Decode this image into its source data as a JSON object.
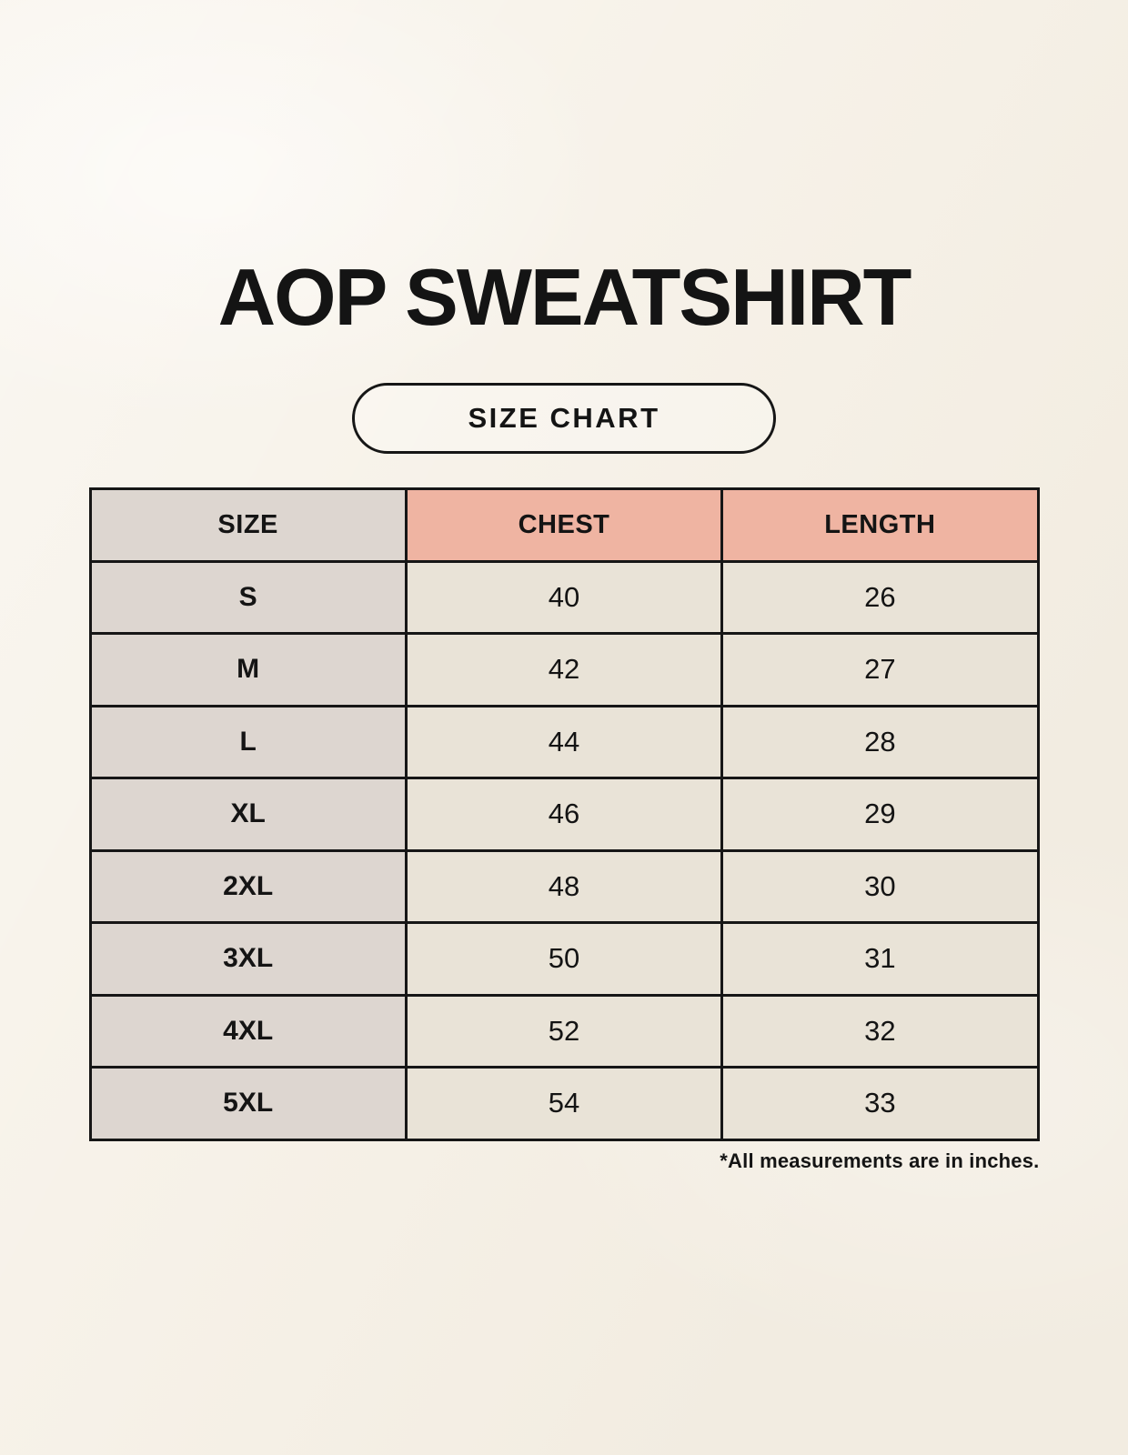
{
  "page": {
    "title": "AOP SWEATSHIRT",
    "badge_label": "SIZE CHART",
    "footnote": "*All measurements are in inches."
  },
  "colors": {
    "background": "#f7f2e9",
    "size_column": "#ddd6d0",
    "header_accent": "#efb4a2",
    "data_cell": "#e9e3d7",
    "border": "#161616",
    "text": "#141414"
  },
  "chart_data": {
    "type": "table",
    "title": "AOP SWEATSHIRT",
    "subtitle": "SIZE CHART",
    "columns": [
      "SIZE",
      "CHEST",
      "LENGTH"
    ],
    "rows": [
      [
        "S",
        40,
        26
      ],
      [
        "M",
        42,
        27
      ],
      [
        "L",
        44,
        28
      ],
      [
        "XL",
        46,
        29
      ],
      [
        "2XL",
        48,
        30
      ],
      [
        "3XL",
        50,
        31
      ],
      [
        "4XL",
        52,
        32
      ],
      [
        "5XL",
        54,
        33
      ]
    ],
    "units": "inches",
    "footnote": "*All measurements are in inches."
  }
}
